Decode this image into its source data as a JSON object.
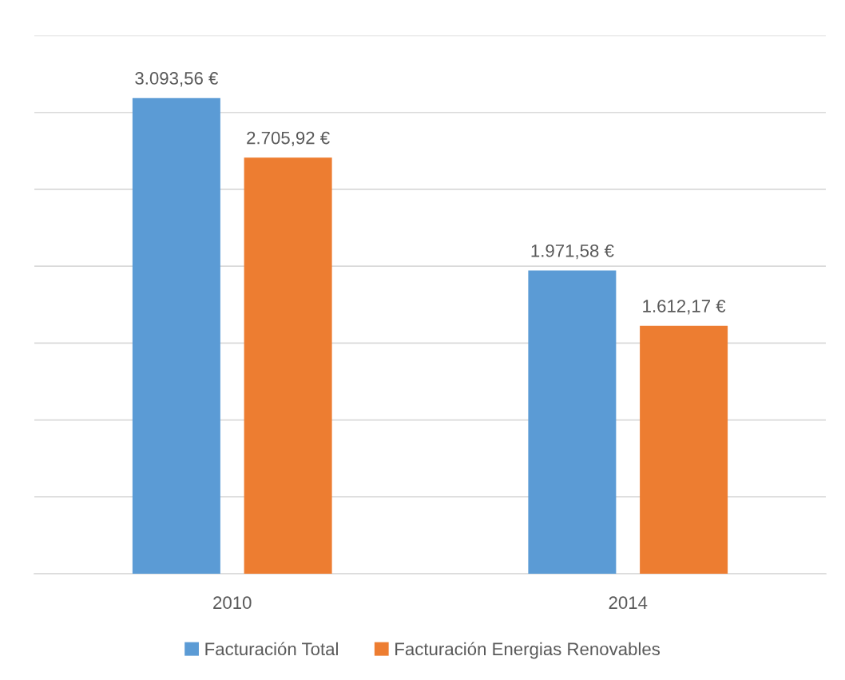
{
  "chart_data": {
    "type": "bar",
    "categories": [
      "2010",
      "2014"
    ],
    "series": [
      {
        "name": "Facturación Total",
        "color": "#5b9bd5",
        "values": [
          3093.56,
          1971.58
        ],
        "value_labels": [
          "3.093,56 €",
          "1.971,58 €"
        ]
      },
      {
        "name": "Facturación Energias Renovables",
        "color": "#ed7d31",
        "values": [
          2705.92,
          1612.17
        ],
        "value_labels": [
          "2.705,92 €",
          "1.612,17 €"
        ]
      }
    ],
    "ylim": [
      0,
      3500
    ],
    "yticks": [
      {
        "value": 0,
        "label": null
      },
      {
        "value": 500,
        "label": null
      },
      {
        "value": 1000,
        "label": null
      },
      {
        "value": 1500,
        "label": null
      },
      {
        "value": 2000,
        "label": null
      },
      {
        "value": 2500,
        "label": null
      },
      {
        "value": 3000,
        "label": null
      },
      {
        "value": 3500,
        "label": null
      }
    ],
    "tick_labels": "x",
    "grid": "y",
    "legend": "bottom"
  }
}
